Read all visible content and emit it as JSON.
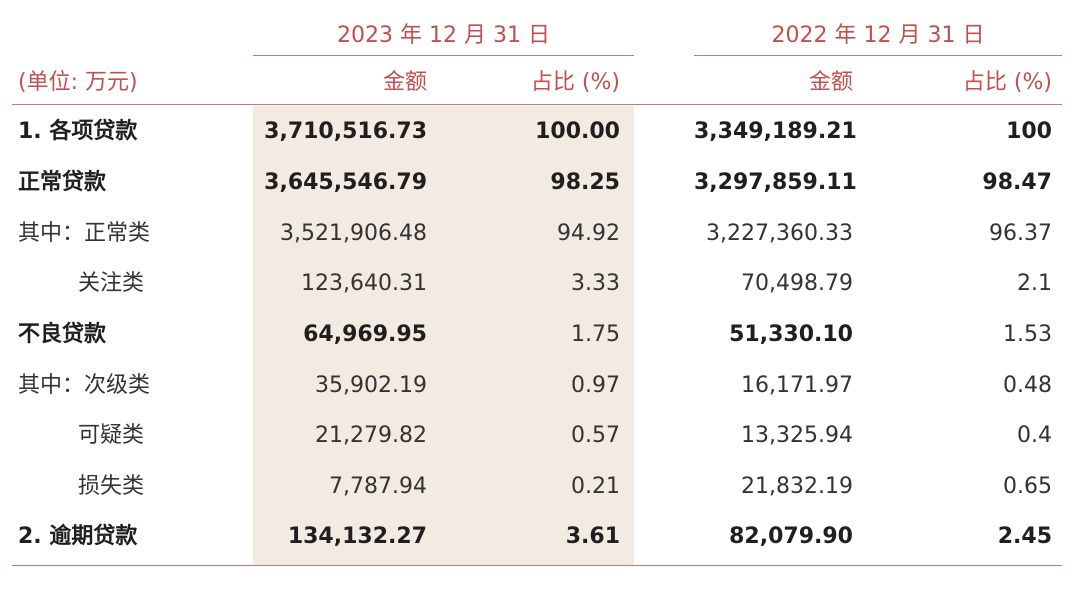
{
  "table": {
    "unit_label": "(单位: 万元)",
    "periods": [
      "2023 年 12 月 31 日",
      "2022 年 12 月 31 日"
    ],
    "col_amount": "金额",
    "col_share": "占比 (%)",
    "rows": [
      {
        "label": "1. 各项贷款",
        "v2023": "3,710,516.73",
        "p2023": "100.00",
        "v2022": "3,349,189.21",
        "p2022": "100"
      },
      {
        "label": "正常贷款",
        "v2023": "3,645,546.79",
        "p2023": "98.25",
        "v2022": "3,297,859.11",
        "p2022": "98.47"
      },
      {
        "label": "其中：正常类",
        "v2023": "3,521,906.48",
        "p2023": "94.92",
        "v2022": "3,227,360.33",
        "p2022": "96.37"
      },
      {
        "label": "关注类",
        "v2023": "123,640.31",
        "p2023": "3.33",
        "v2022": "70,498.79",
        "p2022": "2.1"
      },
      {
        "label": "不良贷款",
        "v2023": "64,969.95",
        "p2023": "1.75",
        "v2022": "51,330.10",
        "p2022": "1.53"
      },
      {
        "label": "其中：次级类",
        "v2023": "35,902.19",
        "p2023": "0.97",
        "v2022": "16,171.97",
        "p2022": "0.48"
      },
      {
        "label": "可疑类",
        "v2023": "21,279.82",
        "p2023": "0.57",
        "v2022": "13,325.94",
        "p2022": "0.4"
      },
      {
        "label": "损失类",
        "v2023": "7,787.94",
        "p2023": "0.21",
        "v2022": "21,832.19",
        "p2022": "0.65"
      },
      {
        "label": "2. 逾期贷款",
        "v2023": "134,132.27",
        "p2023": "3.61",
        "v2022": "82,079.90",
        "p2022": "2.45"
      }
    ]
  },
  "colors": {
    "accent": "#c0504d",
    "rule": "#c97b72",
    "shade": "#f3eae2"
  }
}
